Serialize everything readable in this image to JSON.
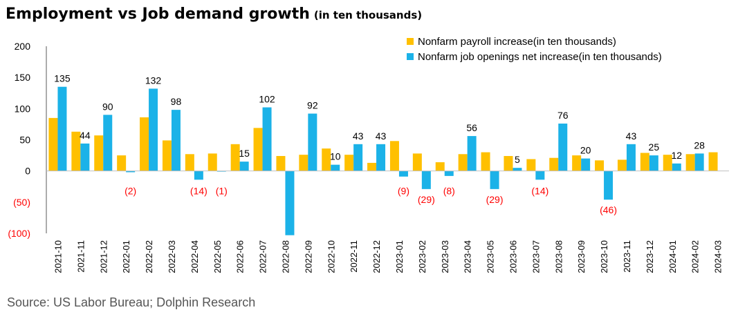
{
  "header": {
    "title": "Employment vs Job demand growth",
    "subtitle": "(in ten thousands)"
  },
  "footer": {
    "source": "Source: US Labor Bureau; Dolphin Research"
  },
  "colors": {
    "payroll": "#FFC000",
    "openings": "#1BB2E8",
    "negative_label": "#FF0000"
  },
  "chart_data": {
    "type": "bar",
    "title": "Employment vs Job demand growth",
    "subtitle": "(in ten thousands)",
    "xlabel": "",
    "ylabel": "",
    "ylim": [
      -100,
      200
    ],
    "yticks": [
      200,
      150,
      100,
      50,
      0,
      -50,
      -100
    ],
    "ytick_labels": [
      "200",
      "150",
      "100",
      "50",
      "0",
      "(50)",
      "(100)"
    ],
    "grid": false,
    "legend_position": "top-right",
    "categories": [
      "2021-10",
      "2021-11",
      "2021-12",
      "2022-01",
      "2022-02",
      "2022-03",
      "2022-04",
      "2022-05",
      "2022-06",
      "2022-07",
      "2022-08",
      "2022-09",
      "2022-10",
      "2022-11",
      "2022-12",
      "2023-01",
      "2023-02",
      "2023-03",
      "2023-04",
      "2023-05",
      "2023-06",
      "2023-07",
      "2023-08",
      "2023-09",
      "2023-10",
      "2023-11",
      "2023-12",
      "2024-01",
      "2024-02",
      "2024-03"
    ],
    "series": [
      {
        "name": "Nonfarm payroll increase(in ten thousands)",
        "color": "#FFC000",
        "values": [
          85,
          63,
          57,
          25,
          86,
          49,
          27,
          28,
          43,
          69,
          24,
          26,
          36,
          26,
          13,
          48,
          28,
          14,
          27,
          30,
          24,
          19,
          21,
          25,
          17,
          18,
          29,
          26,
          27,
          30
        ]
      },
      {
        "name": "Nonfarm job openings net increase(in ten thousands)",
        "color": "#1BB2E8",
        "values": [
          135,
          44,
          90,
          -2,
          132,
          98,
          -14,
          -1,
          15,
          102,
          -103,
          92,
          10,
          43,
          43,
          -9,
          -29,
          -8,
          56,
          -29,
          5,
          -14,
          76,
          20,
          -46,
          43,
          25,
          12,
          28,
          null
        ],
        "labels": [
          "135",
          "44",
          "90",
          "(2)",
          "132",
          "98",
          "(14)",
          "(1)",
          "15",
          "102",
          "",
          "92",
          "10",
          "43",
          "43",
          "(9)",
          "(29)",
          "(8)",
          "56",
          "(29)",
          "5",
          "(14)",
          "76",
          "20",
          "(46)",
          "43",
          "25",
          "12",
          "28",
          ""
        ]
      }
    ]
  }
}
